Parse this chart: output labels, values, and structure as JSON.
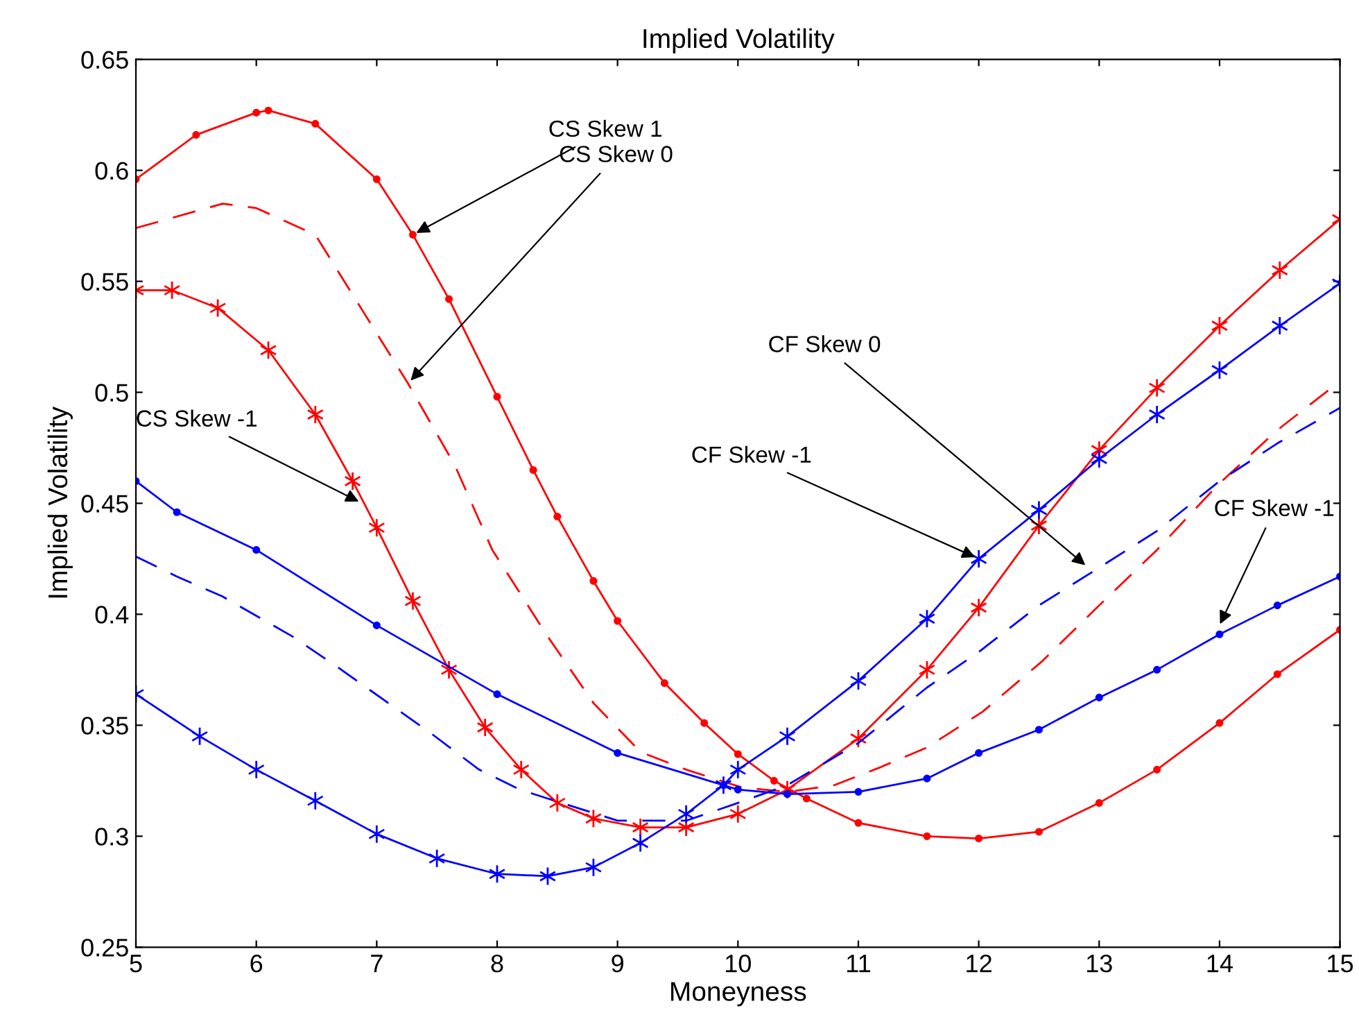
{
  "chart_data": {
    "type": "line",
    "title": "Implied Volatility",
    "xlabel": "Moneyness",
    "ylabel": "Implied Volatility",
    "xlim": [
      5,
      15
    ],
    "ylim": [
      0.25,
      0.65
    ],
    "xticks": [
      5,
      6,
      7,
      8,
      9,
      10,
      11,
      12,
      13,
      14,
      15
    ],
    "yticks": [
      0.25,
      0.3,
      0.35,
      0.4,
      0.45,
      0.5,
      0.55,
      0.6,
      0.65
    ],
    "grid": false,
    "legend": false,
    "series": [
      {
        "color": "#ff0000",
        "marker": "circle",
        "line_style": "solid",
        "x": [
          5,
          5.5,
          6,
          6.1,
          6.49,
          7,
          7.3,
          7.6,
          8,
          8.3,
          8.5,
          8.8,
          9,
          9.39,
          9.72,
          10,
          10.3,
          10.57,
          11,
          11.57,
          12,
          12.5,
          13,
          13.48,
          14,
          14.48,
          15
        ],
        "values": [
          0.596,
          0.616,
          0.626,
          0.627,
          0.621,
          0.596,
          0.571,
          0.542,
          0.498,
          0.465,
          0.444,
          0.415,
          0.397,
          0.369,
          0.351,
          0.337,
          0.325,
          0.317,
          0.306,
          0.3,
          0.299,
          0.302,
          0.315,
          0.33,
          0.351,
          0.373,
          0.393
        ]
      },
      {
        "color": "#ff0000",
        "marker": "none",
        "line_style": "dashed",
        "x": [
          5,
          5.72,
          6,
          6.49,
          6.88,
          7.26,
          7.65,
          7.96,
          8.42,
          8.8,
          9.19,
          9.57,
          10.03,
          10.41,
          10.8,
          11.18,
          11.57,
          12.03,
          12.53,
          13,
          13.48,
          13.98,
          14.48,
          15
        ],
        "values": [
          0.574,
          0.585,
          0.583,
          0.571,
          0.537,
          0.504,
          0.467,
          0.429,
          0.39,
          0.36,
          0.338,
          0.33,
          0.322,
          0.32,
          0.323,
          0.331,
          0.34,
          0.356,
          0.379,
          0.404,
          0.429,
          0.458,
          0.483,
          0.505
        ]
      },
      {
        "color": "#ff0000",
        "marker": "cross",
        "line_style": "solid",
        "x": [
          5,
          5.3,
          5.68,
          6.1,
          6.49,
          6.8,
          7,
          7.3,
          7.6,
          7.9,
          8.2,
          8.5,
          8.8,
          9.19,
          9.57,
          10,
          10.41,
          11,
          11.57,
          12,
          12.5,
          13,
          13.48,
          14,
          14.5,
          15
        ],
        "values": [
          0.546,
          0.546,
          0.538,
          0.519,
          0.49,
          0.46,
          0.439,
          0.406,
          0.375,
          0.349,
          0.33,
          0.315,
          0.308,
          0.304,
          0.304,
          0.31,
          0.321,
          0.344,
          0.375,
          0.403,
          0.44,
          0.474,
          0.502,
          0.53,
          0.555,
          0.578
        ]
      },
      {
        "color": "#0000ff",
        "marker": "cross",
        "line_style": "solid",
        "x": [
          5,
          5.53,
          6,
          6.49,
          7,
          7.5,
          8,
          8.42,
          8.8,
          9.19,
          9.57,
          9.88,
          10,
          10.41,
          11,
          11.57,
          12,
          12.5,
          13,
          13.48,
          14,
          14.5,
          15
        ],
        "values": [
          0.364,
          0.345,
          0.33,
          0.316,
          0.301,
          0.29,
          0.283,
          0.282,
          0.286,
          0.297,
          0.31,
          0.323,
          0.33,
          0.345,
          0.37,
          0.398,
          0.425,
          0.447,
          0.47,
          0.49,
          0.51,
          0.53,
          0.549
        ]
      },
      {
        "color": "#0000ff",
        "marker": "circle",
        "line_style": "solid",
        "x": [
          5,
          5.34,
          6,
          7,
          8,
          9,
          9.88,
          10,
          10.41,
          11,
          11.57,
          12,
          12.5,
          13,
          13.48,
          14,
          14.48,
          15
        ],
        "values": [
          0.46,
          0.446,
          0.429,
          0.395,
          0.364,
          0.3375,
          0.323,
          0.321,
          0.319,
          0.32,
          0.326,
          0.3375,
          0.348,
          0.3625,
          0.375,
          0.391,
          0.404,
          0.417
        ]
      },
      {
        "color": "#0000ff",
        "marker": "none",
        "line_style": "dashed",
        "x": [
          5,
          5.34,
          5.72,
          6.3,
          6.68,
          7.07,
          7.46,
          7.85,
          8.19,
          8.42,
          9,
          9.57,
          10,
          10.41,
          11,
          11.57,
          12,
          12.5,
          13,
          13.48,
          14,
          14.48,
          15
        ],
        "values": [
          0.426,
          0.417,
          0.408,
          0.39,
          0.376,
          0.361,
          0.346,
          0.33,
          0.321,
          0.317,
          0.307,
          0.307,
          0.315,
          0.323,
          0.342,
          0.367,
          0.383,
          0.404,
          0.421,
          0.4375,
          0.46,
          0.477,
          0.493
        ]
      }
    ],
    "annotations": [
      {
        "text": "CS Skew 1",
        "x": 7.3,
        "y": 0.571
      },
      {
        "text": "CS Skew 0",
        "x": 7.26,
        "y": 0.504
      },
      {
        "text": "CS Skew -1",
        "x": 6.88,
        "y": 0.45
      },
      {
        "text": "CF Skew 0",
        "x": 12.91,
        "y": 0.421
      },
      {
        "text": "CF Skew -1",
        "x": 12,
        "y": 0.425
      },
      {
        "text": "CF Skew -1",
        "x": 13.99,
        "y": 0.394
      }
    ]
  }
}
